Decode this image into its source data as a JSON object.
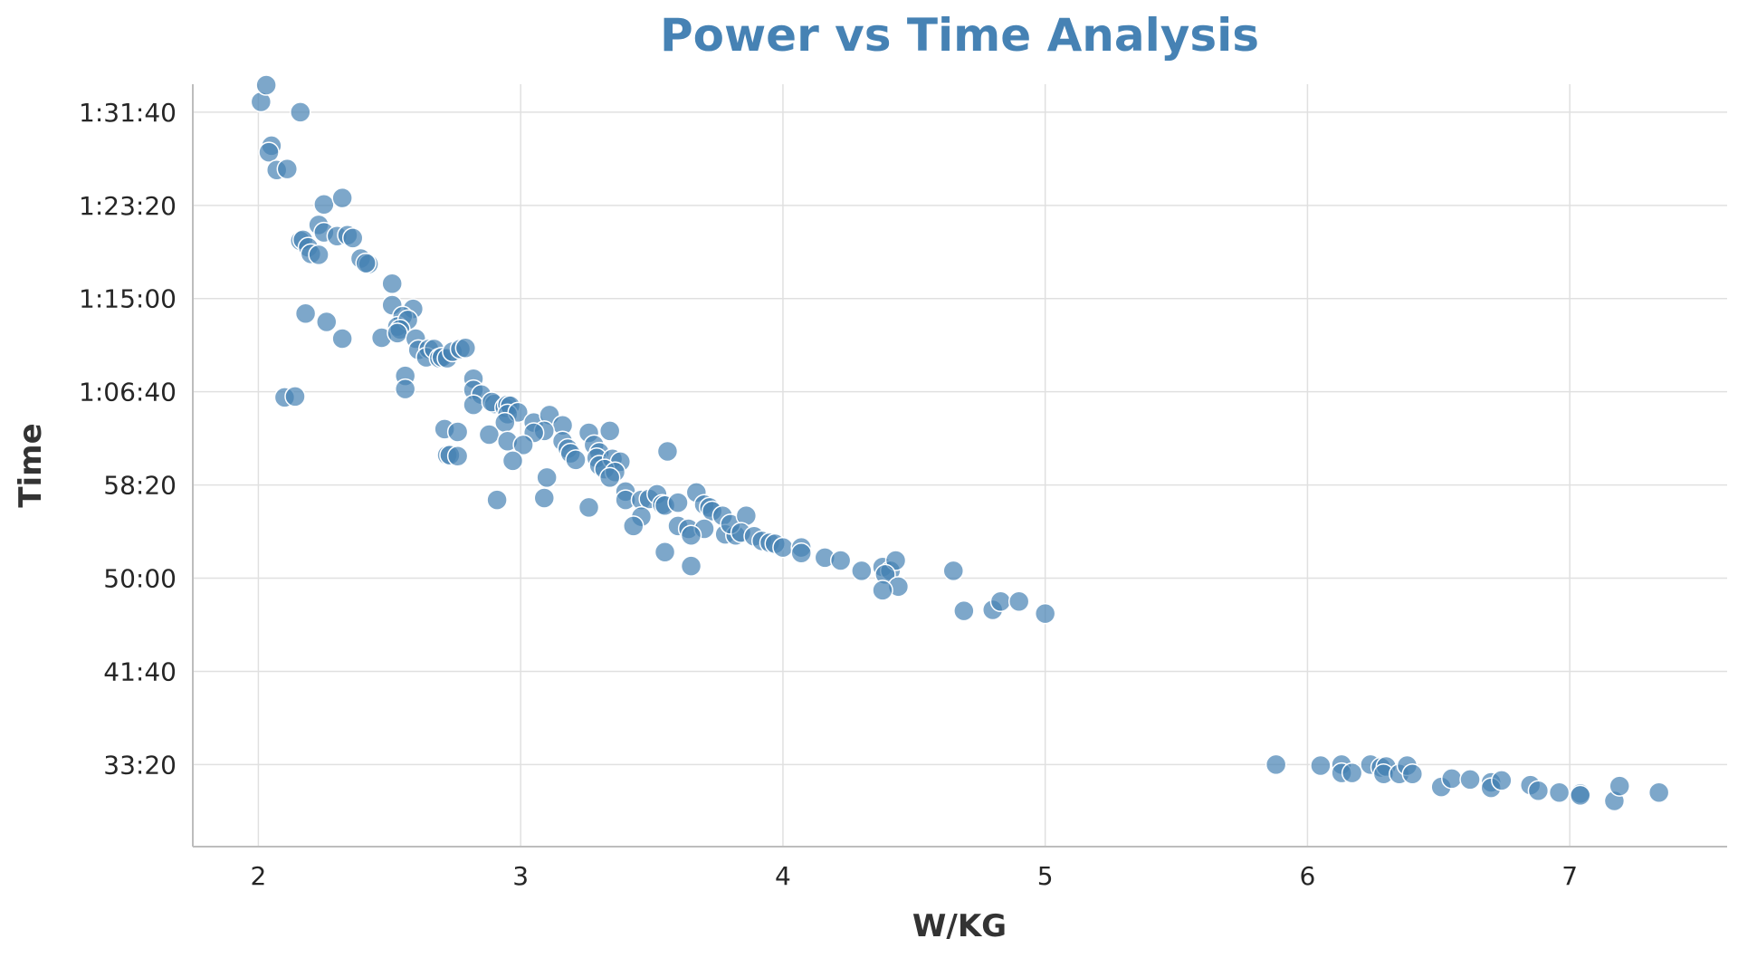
{
  "chart_data": {
    "type": "scatter",
    "title": "Power vs Time Analysis",
    "xlabel": "W/KG",
    "ylabel": "Time",
    "xlim": [
      1.75,
      7.6
    ],
    "ylim_seconds": [
      1560,
      5650
    ],
    "x_ticks": [
      2,
      3,
      4,
      5,
      6,
      7
    ],
    "y_ticks": [
      {
        "seconds": 2000,
        "label": "33:20"
      },
      {
        "seconds": 2500,
        "label": "41:40"
      },
      {
        "seconds": 3000,
        "label": "50:00"
      },
      {
        "seconds": 3500,
        "label": "58:20"
      },
      {
        "seconds": 4000,
        "label": "1:06:40"
      },
      {
        "seconds": 4500,
        "label": "1:15:00"
      },
      {
        "seconds": 5000,
        "label": "1:23:20"
      },
      {
        "seconds": 5500,
        "label": "1:31:40"
      }
    ],
    "grid": true,
    "color": "#4682b4",
    "points": [
      [
        2.01,
        5555
      ],
      [
        2.03,
        5645
      ],
      [
        2.16,
        5500
      ],
      [
        2.05,
        5320
      ],
      [
        2.04,
        5285
      ],
      [
        2.07,
        5190
      ],
      [
        2.11,
        5195
      ],
      [
        2.25,
        5005
      ],
      [
        2.32,
        5040
      ],
      [
        2.23,
        4895
      ],
      [
        2.25,
        4855
      ],
      [
        2.16,
        4810
      ],
      [
        2.17,
        4815
      ],
      [
        2.19,
        4775
      ],
      [
        2.2,
        4740
      ],
      [
        2.23,
        4735
      ],
      [
        2.3,
        4835
      ],
      [
        2.34,
        4840
      ],
      [
        2.36,
        4825
      ],
      [
        2.39,
        4715
      ],
      [
        2.42,
        4685
      ],
      [
        2.41,
        4690
      ],
      [
        2.18,
        4420
      ],
      [
        2.26,
        4375
      ],
      [
        2.32,
        4285
      ],
      [
        2.1,
        3970
      ],
      [
        2.14,
        3975
      ],
      [
        2.51,
        4580
      ],
      [
        2.51,
        4465
      ],
      [
        2.59,
        4445
      ],
      [
        2.55,
        4405
      ],
      [
        2.53,
        4350
      ],
      [
        2.57,
        4385
      ],
      [
        2.54,
        4335
      ],
      [
        2.47,
        4290
      ],
      [
        2.53,
        4315
      ],
      [
        2.6,
        4285
      ],
      [
        2.61,
        4225
      ],
      [
        2.65,
        4230
      ],
      [
        2.64,
        4185
      ],
      [
        2.67,
        4230
      ],
      [
        2.69,
        4180
      ],
      [
        2.7,
        4185
      ],
      [
        2.72,
        4180
      ],
      [
        2.74,
        4215
      ],
      [
        2.77,
        4230
      ],
      [
        2.79,
        4235
      ],
      [
        2.56,
        4085
      ],
      [
        2.56,
        4015
      ],
      [
        2.82,
        4070
      ],
      [
        2.82,
        4010
      ],
      [
        2.85,
        3985
      ],
      [
        2.82,
        3930
      ],
      [
        2.9,
        3935
      ],
      [
        2.89,
        3945
      ],
      [
        2.94,
        3915
      ],
      [
        2.95,
        3930
      ],
      [
        2.96,
        3925
      ],
      [
        2.95,
        3880
      ],
      [
        2.99,
        3890
      ],
      [
        2.94,
        3835
      ],
      [
        3.05,
        3835
      ],
      [
        3.11,
        3875
      ],
      [
        3.16,
        3820
      ],
      [
        3.09,
        3790
      ],
      [
        3.05,
        3780
      ],
      [
        3.26,
        3780
      ],
      [
        3.34,
        3790
      ],
      [
        2.71,
        3800
      ],
      [
        2.76,
        3785
      ],
      [
        2.88,
        3770
      ],
      [
        2.95,
        3735
      ],
      [
        3.01,
        3715
      ],
      [
        2.72,
        3660
      ],
      [
        2.73,
        3660
      ],
      [
        2.76,
        3655
      ],
      [
        2.97,
        3630
      ],
      [
        3.16,
        3735
      ],
      [
        3.18,
        3695
      ],
      [
        3.19,
        3670
      ],
      [
        3.21,
        3635
      ],
      [
        3.28,
        3715
      ],
      [
        3.3,
        3675
      ],
      [
        3.29,
        3645
      ],
      [
        3.3,
        3605
      ],
      [
        3.35,
        3640
      ],
      [
        3.38,
        3625
      ],
      [
        3.32,
        3585
      ],
      [
        3.36,
        3570
      ],
      [
        3.34,
        3540
      ],
      [
        3.56,
        3680
      ],
      [
        3.1,
        3540
      ],
      [
        2.91,
        3420
      ],
      [
        3.09,
        3430
      ],
      [
        3.26,
        3380
      ],
      [
        3.4,
        3465
      ],
      [
        3.4,
        3420
      ],
      [
        3.46,
        3420
      ],
      [
        3.49,
        3425
      ],
      [
        3.52,
        3450
      ],
      [
        3.54,
        3395
      ],
      [
        3.55,
        3390
      ],
      [
        3.46,
        3330
      ],
      [
        3.43,
        3280
      ],
      [
        3.67,
        3460
      ],
      [
        3.6,
        3405
      ],
      [
        3.7,
        3395
      ],
      [
        3.72,
        3380
      ],
      [
        3.73,
        3360
      ],
      [
        3.77,
        3335
      ],
      [
        3.6,
        3280
      ],
      [
        3.64,
        3265
      ],
      [
        3.7,
        3265
      ],
      [
        3.65,
        3230
      ],
      [
        3.78,
        3235
      ],
      [
        3.82,
        3230
      ],
      [
        3.8,
        3290
      ],
      [
        3.86,
        3335
      ],
      [
        3.84,
        3245
      ],
      [
        3.89,
        3225
      ],
      [
        3.92,
        3200
      ],
      [
        3.95,
        3190
      ],
      [
        3.97,
        3185
      ],
      [
        4.0,
        3165
      ],
      [
        4.07,
        3165
      ],
      [
        4.07,
        3135
      ],
      [
        3.65,
        3065
      ],
      [
        3.55,
        3140
      ],
      [
        4.16,
        3110
      ],
      [
        4.22,
        3095
      ],
      [
        4.3,
        3040
      ],
      [
        4.38,
        3060
      ],
      [
        4.41,
        3040
      ],
      [
        4.43,
        3095
      ],
      [
        4.39,
        3020
      ],
      [
        4.44,
        2955
      ],
      [
        4.38,
        2935
      ],
      [
        4.65,
        3040
      ],
      [
        4.69,
        2825
      ],
      [
        4.8,
        2830
      ],
      [
        4.83,
        2875
      ],
      [
        4.9,
        2875
      ],
      [
        5.0,
        2810
      ],
      [
        5.88,
        2000
      ],
      [
        6.05,
        1995
      ],
      [
        6.13,
        2000
      ],
      [
        6.13,
        1955
      ],
      [
        6.17,
        1955
      ],
      [
        6.24,
        2000
      ],
      [
        6.28,
        1985
      ],
      [
        6.3,
        1990
      ],
      [
        6.29,
        1950
      ],
      [
        6.35,
        1950
      ],
      [
        6.38,
        1995
      ],
      [
        6.4,
        1950
      ],
      [
        6.51,
        1880
      ],
      [
        6.55,
        1925
      ],
      [
        6.62,
        1920
      ],
      [
        6.7,
        1905
      ],
      [
        6.7,
        1875
      ],
      [
        6.74,
        1915
      ],
      [
        6.85,
        1890
      ],
      [
        6.88,
        1860
      ],
      [
        6.96,
        1850
      ],
      [
        7.04,
        1845
      ],
      [
        7.04,
        1835
      ],
      [
        7.17,
        1805
      ],
      [
        7.19,
        1885
      ],
      [
        7.34,
        1850
      ]
    ]
  }
}
